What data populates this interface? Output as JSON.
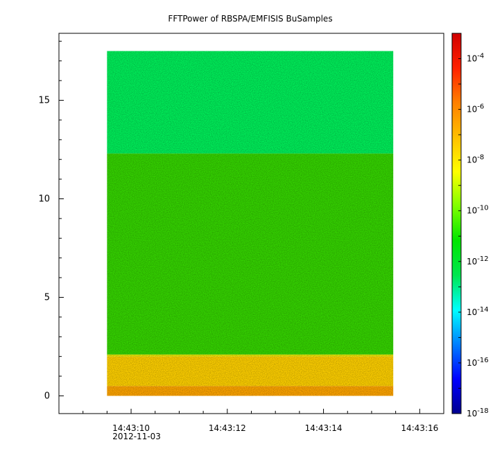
{
  "chart_data": {
    "type": "heatmap",
    "title": "FFTPower of RBSPA/EMFISIS  BuSamples",
    "xlabel": "",
    "ylabel": "",
    "x_axis": {
      "ticks": [
        {
          "label": "14:43:10",
          "sublabel": "2012-11-03",
          "seconds": 10
        },
        {
          "label": "14:43:12",
          "sublabel": "",
          "seconds": 12
        },
        {
          "label": "14:43:14",
          "sublabel": "",
          "seconds": 14
        },
        {
          "label": "14:43:16",
          "sublabel": "",
          "seconds": 16
        }
      ],
      "minor_step_seconds": 0.5,
      "xlim_seconds": [
        8.5,
        16.5
      ]
    },
    "y_axis": {
      "ticks": [
        0,
        5,
        10,
        15
      ],
      "ylim": [
        -0.9,
        18.4
      ]
    },
    "data_extent": {
      "x_seconds": [
        9.5,
        15.45
      ],
      "y": [
        0,
        17.5
      ]
    },
    "bands": [
      {
        "y_from": 0,
        "y_to": 0.5,
        "value": "3e-8",
        "color": "#ffa500"
      },
      {
        "y_from": 0.5,
        "y_to": 2.0,
        "value": "1e-8",
        "color": "#ffd000"
      },
      {
        "y_from": 2.0,
        "y_to": 2.1,
        "value": "3e-9",
        "color": "#e6e600"
      },
      {
        "y_from": 2.1,
        "y_to": 12.3,
        "value": "1e-10",
        "color": "#35d500"
      },
      {
        "y_from": 12.3,
        "y_to": 17.5,
        "value": "1e-12",
        "color": "#00f05a"
      }
    ],
    "colorbar": {
      "scale": "log",
      "range": [
        1e-18,
        0.001
      ],
      "tick_labels": [
        {
          "mantissa": "10",
          "exp": "-4"
        },
        {
          "mantissa": "10",
          "exp": "-6"
        },
        {
          "mantissa": "10",
          "exp": "-8"
        },
        {
          "mantissa": "10",
          "exp": "-10"
        },
        {
          "mantissa": "10",
          "exp": "-12"
        },
        {
          "mantissa": "10",
          "exp": "-14"
        },
        {
          "mantissa": "10",
          "exp": "-16"
        },
        {
          "mantissa": "10",
          "exp": "-18"
        }
      ],
      "colors": [
        "#00008f",
        "#0000ff",
        "#007fff",
        "#00ffff",
        "#00e650",
        "#00e600",
        "#7fff00",
        "#ffff00",
        "#ffbf00",
        "#ff7f00",
        "#ff2000",
        "#d00000"
      ]
    }
  }
}
